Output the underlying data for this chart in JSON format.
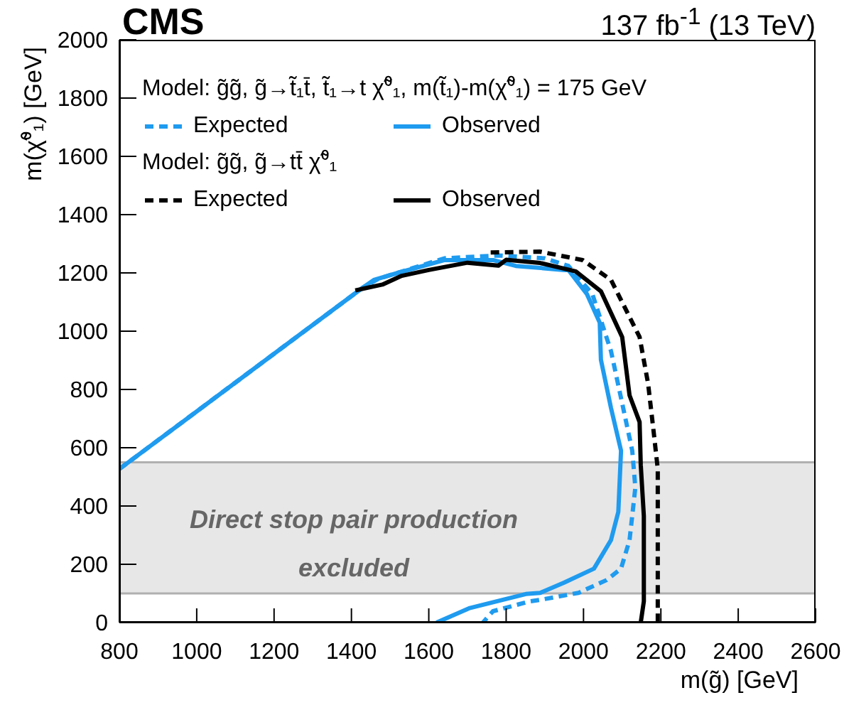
{
  "chart_data": {
    "type": "line",
    "title": "CMS",
    "subtitle": "137 fb$^{-1}$ (13 TeV)",
    "xlabel": "m(g̃) [GeV]",
    "ylabel": "m(χ̃⁰₁) [GeV]",
    "xlim": [
      800,
      2600
    ],
    "ylim": [
      0,
      2000
    ],
    "xticks": [
      800,
      1000,
      1200,
      1400,
      1600,
      1800,
      2000,
      2200,
      2400,
      2600
    ],
    "yticks": [
      0,
      200,
      400,
      600,
      800,
      1000,
      1200,
      1400,
      1600,
      1800,
      2000
    ],
    "legend": "top",
    "marker": "none",
    "annotations": [
      "Model: g̃g̃, g̃→t̃₁t̄,  t̃₁→t χ̃⁰₁,  m(t̃₁)-m(χ̃⁰₁) = 175 GeV",
      "Model: g̃g̃, g̃→tt̄ χ̃⁰₁"
    ],
    "bands": [
      {
        "axis": "y",
        "from": 100,
        "to": 550,
        "label": "Direct stop pair production excluded",
        "color": "#b0b0b0"
      }
    ],
    "series": [
      {
        "name": "Expected",
        "color": "#1f9bef",
        "line_style": "dashed",
        "x": [
          800,
          1430,
          1470,
          1640,
          1780,
          1900,
          1961,
          2023,
          2071,
          2097,
          2126,
          2134,
          2119,
          2097,
          2060,
          1987,
          1888,
          1862,
          1766,
          1740
        ],
        "values": [
          527,
          1150,
          1180,
          1250,
          1260,
          1250,
          1224,
          1127,
          932,
          771,
          590,
          463,
          283,
          185,
          146,
          102,
          78,
          73,
          39,
          0
        ]
      },
      {
        "name": "Observed",
        "color": "#1f9bef",
        "line_style": "solid",
        "x": [
          800,
          1430,
          1458,
          1520,
          1641,
          1766,
          1825,
          1950,
          1961,
          2009,
          2042,
          2045,
          2071,
          2097,
          2090,
          2071,
          2027,
          1950,
          1888,
          1851,
          1704,
          1620
        ],
        "values": [
          527,
          1150,
          1176,
          1200,
          1244,
          1244,
          1224,
          1210,
          1210,
          1127,
          1029,
          902,
          737,
          590,
          380,
          283,
          185,
          137,
          102,
          98,
          49,
          0
        ]
      },
      {
        "name": "Expected",
        "color": "#000000",
        "line_style": "dashed",
        "x": [
          1760,
          1888,
          1998,
          2071,
          2145,
          2167,
          2181,
          2192,
          2192,
          2192
        ],
        "values": [
          1270,
          1273,
          1244,
          1176,
          980,
          820,
          659,
          527,
          73,
          0
        ]
      },
      {
        "name": "Observed",
        "color": "#000000",
        "line_style": "solid",
        "x": [
          1410,
          1480,
          1530,
          1600,
          1700,
          1780,
          1800,
          1888,
          1980,
          2045,
          2100,
          2119,
          2145,
          2148,
          2156,
          2156,
          2148
        ],
        "values": [
          1140,
          1160,
          1190,
          1210,
          1235,
          1225,
          1245,
          1234,
          1205,
          1137,
          980,
          780,
          688,
          541,
          366,
          73,
          0
        ]
      }
    ]
  }
}
